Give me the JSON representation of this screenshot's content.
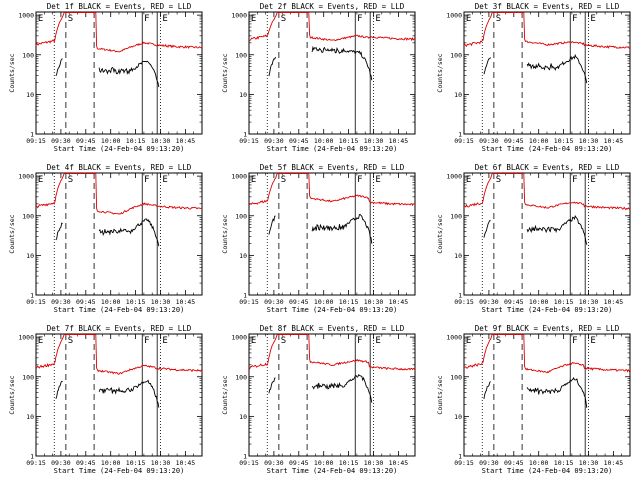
{
  "figure": {
    "legend_suffix": "BLACK = Events, RED = LLD",
    "ylabel": "Counts/sec",
    "xlabel": "Start Time (24-Feb-04 09:13:20)",
    "x_ticks": [
      "09:15",
      "09:30",
      "09:45",
      "10:00",
      "10:15",
      "10:30",
      "10:45"
    ],
    "y_ticks": [
      "1",
      "10",
      "100",
      "1000"
    ],
    "marker_letters": [
      "E",
      "S",
      "F",
      "E"
    ],
    "colors": {
      "events": "#000000",
      "lld": "#e00000"
    }
  },
  "chart_data": [
    {
      "type": "line",
      "title": "Det 1f",
      "events_level": [
        70,
        40,
        70
      ],
      "lld_level": [
        180,
        120,
        200,
        160
      ]
    },
    {
      "type": "line",
      "title": "Det 2f",
      "events_level": [
        80,
        130,
        110
      ],
      "lld_level": [
        240,
        230,
        300,
        260
      ]
    },
    {
      "type": "line",
      "title": "Det 3f",
      "events_level": [
        80,
        50,
        90
      ],
      "lld_level": [
        170,
        180,
        210,
        160
      ]
    },
    {
      "type": "line",
      "title": "Det 4f",
      "events_level": [
        60,
        40,
        80
      ],
      "lld_level": [
        170,
        110,
        200,
        160
      ]
    },
    {
      "type": "line",
      "title": "Det 5f",
      "events_level": [
        90,
        50,
        100
      ],
      "lld_level": [
        190,
        230,
        320,
        200
      ]
    },
    {
      "type": "line",
      "title": "Det 6f",
      "events_level": [
        70,
        45,
        90
      ],
      "lld_level": [
        170,
        160,
        220,
        160
      ]
    },
    {
      "type": "line",
      "title": "Det 7f",
      "events_level": [
        70,
        45,
        80
      ],
      "lld_level": [
        170,
        120,
        190,
        150
      ]
    },
    {
      "type": "line",
      "title": "Det 8f",
      "events_level": [
        90,
        60,
        110
      ],
      "lld_level": [
        170,
        200,
        260,
        160
      ]
    },
    {
      "type": "line",
      "title": "Det 9f",
      "events_level": [
        70,
        45,
        90
      ],
      "lld_level": [
        170,
        130,
        220,
        150
      ]
    }
  ]
}
